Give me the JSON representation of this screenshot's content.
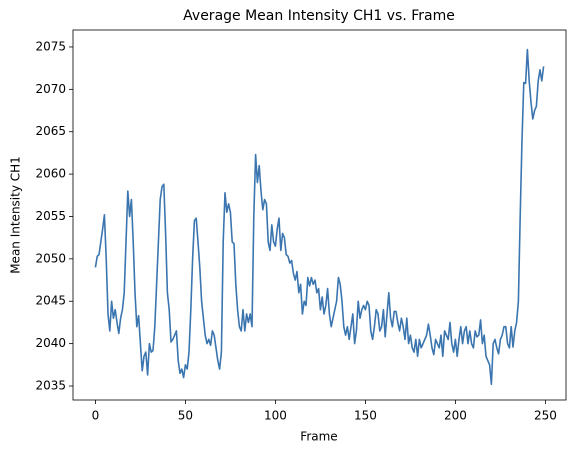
{
  "chart_data": {
    "type": "line",
    "title": "Average Mean Intensity CH1 vs. Frame",
    "xlabel": "Frame",
    "ylabel": "Mean Intensity CH1",
    "x": [
      0,
      1,
      2,
      3,
      4,
      5,
      6,
      7,
      8,
      9,
      10,
      11,
      12,
      13,
      14,
      15,
      16,
      17,
      18,
      19,
      20,
      21,
      22,
      23,
      24,
      25,
      26,
      27,
      28,
      29,
      30,
      31,
      32,
      33,
      34,
      35,
      36,
      37,
      38,
      39,
      40,
      41,
      42,
      43,
      44,
      45,
      46,
      47,
      48,
      49,
      50,
      51,
      52,
      53,
      54,
      55,
      56,
      57,
      58,
      59,
      60,
      61,
      62,
      63,
      64,
      65,
      66,
      67,
      68,
      69,
      70,
      71,
      72,
      73,
      74,
      75,
      76,
      77,
      78,
      79,
      80,
      81,
      82,
      83,
      84,
      85,
      86,
      87,
      88,
      89,
      90,
      91,
      92,
      93,
      94,
      95,
      96,
      97,
      98,
      99,
      100,
      101,
      102,
      103,
      104,
      105,
      106,
      107,
      108,
      109,
      110,
      111,
      112,
      113,
      114,
      115,
      116,
      117,
      118,
      119,
      120,
      121,
      122,
      123,
      124,
      125,
      126,
      127,
      128,
      129,
      130,
      131,
      132,
      133,
      134,
      135,
      136,
      137,
      138,
      139,
      140,
      141,
      142,
      143,
      144,
      145,
      146,
      147,
      148,
      149,
      150,
      151,
      152,
      153,
      154,
      155,
      156,
      157,
      158,
      159,
      160,
      161,
      162,
      163,
      164,
      165,
      166,
      167,
      168,
      169,
      170,
      171,
      172,
      173,
      174,
      175,
      176,
      177,
      178,
      179,
      180,
      181,
      182,
      183,
      184,
      185,
      186,
      187,
      188,
      189,
      190,
      191,
      192,
      193,
      194,
      195,
      196,
      197,
      198,
      199,
      200,
      201,
      202,
      203,
      204,
      205,
      206,
      207,
      208,
      209,
      210,
      211,
      212,
      213,
      214,
      215,
      216,
      217,
      218,
      219,
      220,
      221,
      222,
      223,
      224,
      225,
      226,
      227,
      228,
      229,
      230,
      231,
      232,
      233,
      234,
      235,
      236,
      237,
      238,
      239,
      240,
      241,
      242,
      243,
      244,
      245,
      246,
      247,
      248,
      249
    ],
    "series": [
      {
        "name": "Mean Intensity CH1",
        "color": "#3b75af",
        "values": [
          2049,
          2050.3,
          2050.5,
          2052,
          2053.5,
          2055.2,
          2050,
          2043.5,
          2041.5,
          2045,
          2043,
          2044,
          2042.5,
          2041.2,
          2043,
          2044,
          2046,
          2052,
          2058,
          2055,
          2057,
          2052,
          2046,
          2042,
          2043.3,
          2040,
          2036.8,
          2038.5,
          2039,
          2036.3,
          2040,
          2039,
          2039.2,
          2042,
          2047,
          2052,
          2057,
          2058.5,
          2058.8,
          2053,
          2046,
          2044,
          2040.2,
          2040.5,
          2041,
          2041.5,
          2038,
          2036.5,
          2037,
          2036,
          2037.5,
          2037,
          2039,
          2044,
          2050,
          2054.5,
          2054.8,
          2052,
          2049,
          2045,
          2043,
          2041,
          2040,
          2040.5,
          2039.8,
          2041.5,
          2041,
          2039.5,
          2038,
          2037,
          2039,
          2052,
          2057.8,
          2055.5,
          2056.5,
          2055.5,
          2052,
          2051.8,
          2047,
          2044,
          2042,
          2041.5,
          2044,
          2041.5,
          2043.5,
          2042.5,
          2043.5,
          2042,
          2055,
          2062.3,
          2059,
          2061,
          2058,
          2055.8,
          2057,
          2056.5,
          2052,
          2051,
          2054,
          2052,
          2051.5,
          2053.5,
          2054.8,
          2051,
          2053,
          2052.5,
          2050.5,
          2050.3,
          2049.5,
          2049.8,
          2048.3,
          2047.5,
          2048.5,
          2046,
          2047,
          2043.5,
          2045,
          2044.5,
          2047.8,
          2046.8,
          2047.8,
          2047,
          2047.5,
          2046,
          2046.5,
          2044,
          2045.5,
          2043.5,
          2044.5,
          2046.5,
          2043.5,
          2042,
          2043,
          2044,
          2045,
          2047.8,
          2047,
          2045,
          2042,
          2041,
          2042,
          2040.5,
          2042,
          2043.5,
          2040,
          2041.5,
          2045,
          2043,
          2044,
          2044.5,
          2044,
          2045,
          2044.5,
          2041.5,
          2040.5,
          2042,
          2044,
          2043.5,
          2041.5,
          2042,
          2044,
          2040.8,
          2043.5,
          2046,
          2043,
          2042,
          2043.8,
          2043.8,
          2042.5,
          2041.5,
          2043,
          2042,
          2040.5,
          2043,
          2040,
          2041,
          2039.5,
          2039,
          2040.5,
          2038.5,
          2040.5,
          2039.5,
          2040,
          2040.5,
          2041,
          2042.3,
          2041,
          2039.5,
          2038.7,
          2040.5,
          2040,
          2039.5,
          2041,
          2038.5,
          2041.5,
          2041,
          2040.5,
          2042.5,
          2040,
          2039,
          2040.5,
          2038.5,
          2040.5,
          2042,
          2040,
          2041.5,
          2042,
          2040,
          2041.5,
          2040,
          2039.5,
          2041.5,
          2040.8,
          2041,
          2042.8,
          2040,
          2041,
          2038.5,
          2038,
          2037.5,
          2035.2,
          2040,
          2040.5,
          2039.5,
          2038.8,
          2040.5,
          2041,
          2042,
          2042,
          2040,
          2039.5,
          2042,
          2039.6,
          2041.5,
          2042.5,
          2045,
          2055,
          2064,
          2070.8,
          2070.7,
          2074.7,
          2071,
          2068.5,
          2066.5,
          2067.5,
          2068,
          2071,
          2072.3,
          2071,
          2072.7
        ]
      }
    ],
    "xlim": [
      -12.45,
      261.45
    ],
    "ylim": [
      2033.35,
      2077.0
    ],
    "xticks": [
      0,
      50,
      100,
      150,
      200,
      250
    ],
    "yticks": [
      2035,
      2040,
      2045,
      2050,
      2055,
      2060,
      2065,
      2070,
      2075
    ],
    "grid": false
  }
}
